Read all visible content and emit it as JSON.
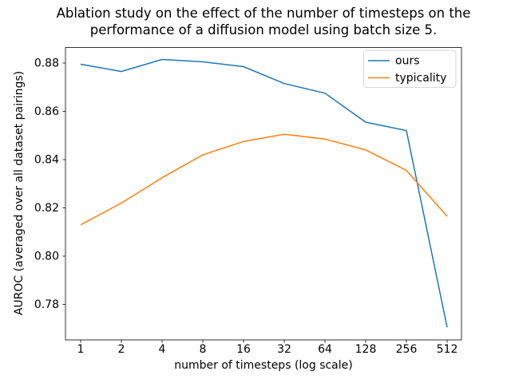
{
  "chart_data": {
    "type": "line",
    "title_lines": [
      "Ablation study on the effect of the number of timesteps on the",
      "performance of a diffusion model using batch size 5."
    ],
    "xlabel": "number of timesteps (log scale)",
    "ylabel": "AUROC (averaged over all dataset pairings)",
    "x_scale": "log2",
    "x": [
      1,
      2,
      4,
      8,
      16,
      32,
      64,
      128,
      256,
      512
    ],
    "x_tick_labels": [
      "1",
      "2",
      "4",
      "8",
      "16",
      "32",
      "64",
      "128",
      "256",
      "512"
    ],
    "y_ticks": [
      0.78,
      0.8,
      0.82,
      0.84,
      0.86,
      0.88
    ],
    "y_tick_labels": [
      "0.78",
      "0.80",
      "0.82",
      "0.84",
      "0.86",
      "0.88"
    ],
    "xlim": [
      0.73,
      700
    ],
    "ylim": [
      0.765,
      0.887
    ],
    "grid": false,
    "series": [
      {
        "name": "ours",
        "color": "#1f77b4",
        "values": [
          0.8795,
          0.8765,
          0.8815,
          0.8805,
          0.8785,
          0.8715,
          0.8675,
          0.8555,
          0.852,
          0.7705
        ]
      },
      {
        "name": "typicality",
        "color": "#ff7f0e",
        "values": [
          0.813,
          0.822,
          0.8325,
          0.842,
          0.8475,
          0.8505,
          0.8485,
          0.844,
          0.8355,
          0.8165
        ]
      }
    ],
    "legend": {
      "position": "upper right",
      "entries": [
        "ours",
        "typicality"
      ]
    }
  }
}
